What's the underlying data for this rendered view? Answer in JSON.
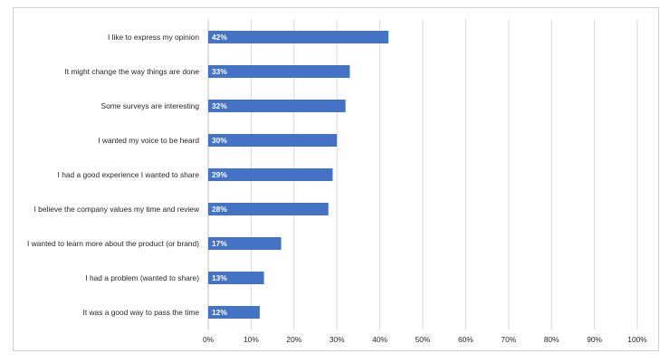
{
  "chart_data": {
    "type": "bar",
    "orientation": "horizontal",
    "title": "",
    "xlabel": "",
    "ylabel": "",
    "categories": [
      "I like to express my opinion",
      "It might change the way things are done",
      "Some surveys are interesting",
      "I wanted my voice to be heard",
      "I had a good experience I wanted to share",
      "I believe the company values my time and review",
      "I wanted to learn more about the product (or brand)",
      "I had a problem (wanted to share)",
      "It was a good way to pass the time"
    ],
    "values": [
      42,
      33,
      32,
      30,
      29,
      28,
      17,
      13,
      12
    ],
    "value_labels": [
      "42%",
      "33%",
      "32%",
      "30%",
      "29%",
      "28%",
      "17%",
      "13%",
      "12%"
    ],
    "xlim": [
      0,
      100
    ],
    "x_ticks": [
      0,
      10,
      20,
      30,
      40,
      50,
      60,
      70,
      80,
      90,
      100
    ],
    "x_tick_labels": [
      "0%",
      "10%",
      "20%",
      "30%",
      "40%",
      "50%",
      "60%",
      "70%",
      "80%",
      "90%",
      "100%"
    ],
    "grid": "vertical",
    "legend": "none",
    "bar_color": "#4472c4"
  }
}
